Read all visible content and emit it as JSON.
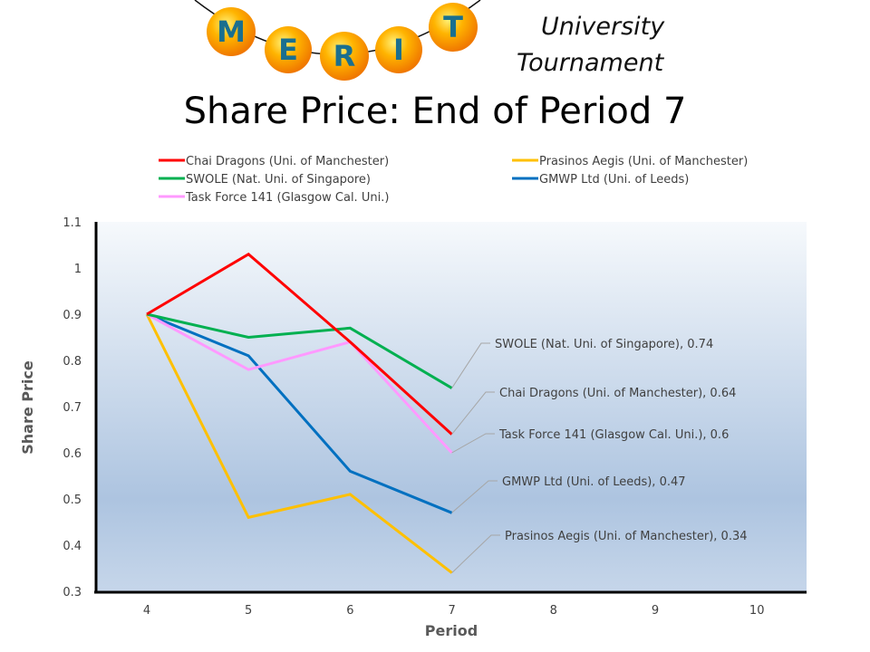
{
  "logo": {
    "letters": [
      "M",
      "E",
      "R",
      "I",
      "T"
    ],
    "subtitle_line1": "University",
    "subtitle_line2": "Tournament"
  },
  "title": "Share Price: End of Period 7",
  "chart_data": {
    "type": "line",
    "title": "Share Price: End of Period 7",
    "xlabel": "Period",
    "ylabel": "Share Price",
    "x": [
      4,
      5,
      6,
      7
    ],
    "xticks": [
      "4",
      "5",
      "6",
      "7",
      "8",
      "9",
      "10"
    ],
    "xlim": [
      4,
      10
    ],
    "yticks": [
      "0.3",
      "0.4",
      "0.5",
      "0.6",
      "0.7",
      "0.8",
      "0.9",
      "1",
      "1.1"
    ],
    "ylim": [
      0.3,
      1.1
    ],
    "grid": false,
    "legend_position": "top",
    "series": [
      {
        "name": "Chai Dragons (Uni. of Manchester)",
        "color": "#ff0000",
        "values": [
          0.9,
          1.03,
          0.84,
          0.64
        ],
        "end_label": "Chai Dragons (Uni. of Manchester), 0.64"
      },
      {
        "name": "Prasinos Aegis (Uni. of Manchester)",
        "color": "#ffc000",
        "values": [
          0.9,
          0.46,
          0.51,
          0.34
        ],
        "end_label": "Prasinos Aegis (Uni. of Manchester), 0.34"
      },
      {
        "name": "SWOLE (Nat. Uni. of Singapore)",
        "color": "#00b050",
        "values": [
          0.9,
          0.85,
          0.87,
          0.74
        ],
        "end_label": "SWOLE (Nat. Uni. of Singapore), 0.74"
      },
      {
        "name": "GMWP Ltd (Uni. of Leeds)",
        "color": "#0070c0",
        "values": [
          0.9,
          0.81,
          0.56,
          0.47
        ],
        "end_label": "GMWP Ltd (Uni. of Leeds), 0.47"
      },
      {
        "name": "Task Force 141 (Glasgow Cal. Uni.)",
        "color": "#ff99ff",
        "values": [
          0.9,
          0.78,
          0.84,
          0.6
        ],
        "end_label": "Task Force 141 (Glasgow Cal. Uni.), 0.6"
      }
    ]
  }
}
